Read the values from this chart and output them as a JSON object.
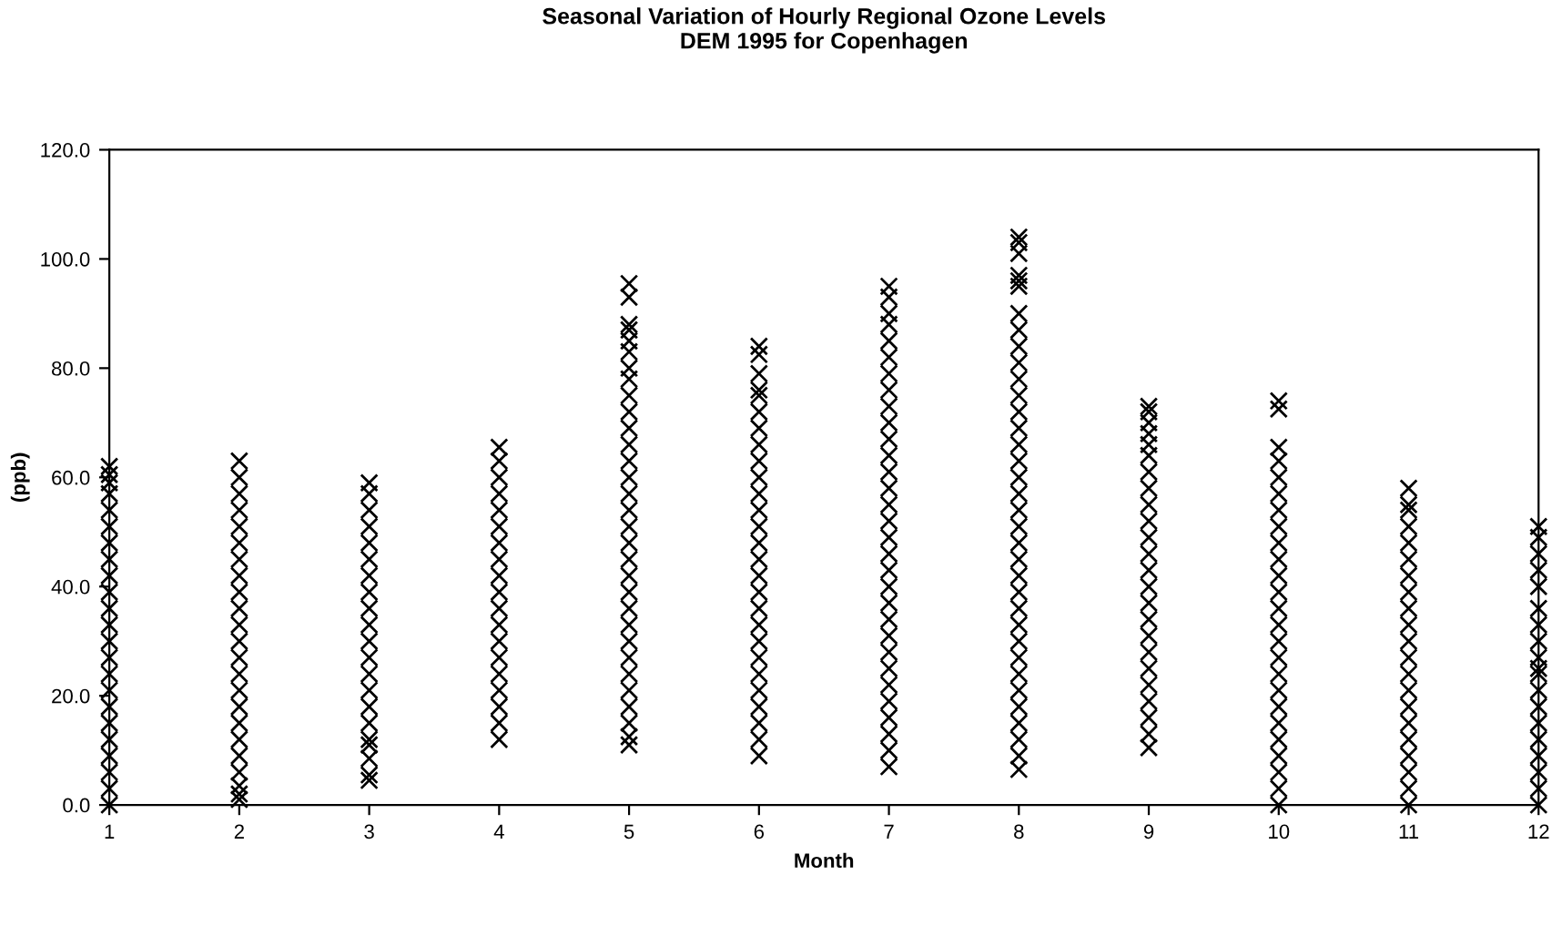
{
  "chart_data": {
    "type": "scatter",
    "title": "Seasonal Variation of Hourly Regional Ozone Levels\nDEM 1995 for Copenhagen",
    "xlabel": "Month",
    "ylabel": "(ppb)",
    "xlim": [
      1,
      12
    ],
    "xticks": [
      1,
      2,
      3,
      4,
      5,
      6,
      7,
      8,
      9,
      10,
      11,
      12
    ],
    "ylim": [
      0,
      120
    ],
    "yticks": [
      {
        "value": 0,
        "label": "0.0"
      },
      {
        "value": 20,
        "label": "20.0"
      },
      {
        "value": 40,
        "label": "40.0"
      },
      {
        "value": 60,
        "label": "60.0"
      },
      {
        "value": 80,
        "label": "80.0"
      },
      {
        "value": 100,
        "label": "100.0"
      },
      {
        "value": 120,
        "label": "120.0"
      }
    ],
    "grid": false,
    "marker": "cross",
    "series": [
      {
        "color": "#000000",
        "x": [
          1,
          1,
          1,
          1,
          1,
          1,
          1,
          1,
          1,
          1,
          1,
          1,
          1,
          1,
          1,
          1,
          1,
          1,
          1,
          1,
          1,
          1,
          1,
          2,
          2,
          2,
          2,
          2,
          2,
          2,
          2,
          2,
          2,
          2,
          2,
          2,
          2,
          2,
          2,
          2,
          2,
          2,
          2,
          2,
          2,
          2,
          3,
          3,
          3,
          3,
          3,
          3,
          3,
          3,
          3,
          3,
          3,
          3,
          3,
          3,
          3,
          3,
          3,
          3,
          3,
          3,
          3,
          4,
          4,
          4,
          4,
          4,
          4,
          4,
          4,
          4,
          4,
          4,
          4,
          4,
          4,
          4,
          4,
          4,
          4,
          4,
          5,
          5,
          5,
          5,
          5,
          5,
          5,
          5,
          5,
          5,
          5,
          5,
          5,
          5,
          5,
          5,
          5,
          5,
          5,
          5,
          5,
          5,
          5,
          5,
          5,
          5,
          5,
          5,
          5,
          5,
          5,
          6,
          6,
          6,
          6,
          6,
          6,
          6,
          6,
          6,
          6,
          6,
          6,
          6,
          6,
          6,
          6,
          6,
          6,
          6,
          6,
          6,
          6,
          6,
          6,
          6,
          6,
          6,
          7,
          7,
          7,
          7,
          7,
          7,
          7,
          7,
          7,
          7,
          7,
          7,
          7,
          7,
          7,
          7,
          7,
          7,
          7,
          7,
          7,
          7,
          7,
          7,
          7,
          7,
          7,
          7,
          7,
          7,
          7,
          8,
          8,
          8,
          8,
          8,
          8,
          8,
          8,
          8,
          8,
          8,
          8,
          8,
          8,
          8,
          8,
          8,
          8,
          8,
          8,
          8,
          8,
          8,
          8,
          8,
          8,
          8,
          8,
          8,
          8,
          8,
          8,
          8,
          8,
          8,
          9,
          9,
          9,
          9,
          9,
          9,
          9,
          9,
          9,
          9,
          9,
          9,
          9,
          9,
          9,
          9,
          9,
          9,
          9,
          9,
          9,
          9,
          9,
          9,
          10,
          10,
          10,
          10,
          10,
          10,
          10,
          10,
          10,
          10,
          10,
          10,
          10,
          10,
          10,
          10,
          10,
          10,
          10,
          10,
          10,
          10,
          10,
          10,
          10,
          11,
          11,
          11,
          11,
          11,
          11,
          11,
          11,
          11,
          11,
          11,
          11,
          11,
          11,
          11,
          11,
          11,
          11,
          11,
          11,
          11,
          12,
          12,
          12,
          12,
          12,
          12,
          12,
          12,
          12,
          12,
          12,
          12,
          12,
          12,
          12,
          12,
          12,
          12,
          12
        ],
        "values": [
          0,
          3,
          6,
          9,
          12,
          15,
          18,
          21,
          24,
          27,
          30,
          33,
          36,
          39,
          42,
          45,
          48,
          51,
          54,
          57,
          59,
          60.5,
          62,
          1,
          2,
          3.5,
          6,
          9,
          12,
          15,
          18,
          21,
          24,
          27,
          30,
          33,
          36,
          39,
          42,
          45,
          48,
          51,
          54,
          57,
          60,
          63,
          4.5,
          5.5,
          8.5,
          11,
          12,
          15,
          18,
          21,
          24,
          27,
          30,
          33,
          36,
          39,
          42,
          45,
          48,
          51,
          54,
          57,
          59,
          12,
          15,
          18,
          21,
          24,
          27,
          30,
          33,
          36,
          39,
          42,
          45,
          48,
          51,
          54,
          57,
          60,
          63,
          65.5,
          11,
          12.5,
          15,
          18,
          21,
          24,
          27,
          30,
          33,
          36,
          39,
          42,
          45,
          48,
          51,
          54,
          57,
          60,
          63,
          66,
          69,
          72,
          75,
          78,
          80,
          83,
          85,
          87,
          88,
          93,
          95.5,
          9,
          12,
          15,
          18,
          21,
          24,
          27,
          30,
          33,
          36,
          39,
          42,
          45,
          48,
          51,
          54,
          57,
          60,
          63,
          66,
          69,
          72,
          75,
          76,
          79,
          82.5,
          84,
          7,
          10,
          13,
          16,
          19,
          22,
          25,
          28,
          31,
          34,
          37,
          40,
          43,
          46,
          49,
          52,
          55,
          58,
          61,
          64,
          67,
          70,
          73,
          76,
          79,
          82,
          85,
          88,
          90,
          93,
          95,
          6.5,
          9,
          12,
          15,
          18,
          21,
          24,
          27,
          30,
          33,
          36,
          39,
          42,
          45,
          48,
          51,
          54,
          57,
          60,
          63,
          66,
          69,
          72,
          75,
          78,
          81,
          84,
          87,
          90,
          95,
          96,
          97,
          101,
          103,
          104,
          10.5,
          13,
          16,
          19,
          22,
          25,
          28,
          31,
          34,
          37,
          40,
          43,
          46,
          49,
          52,
          55,
          58,
          61,
          64,
          66,
          68,
          70,
          72,
          73,
          0,
          3,
          6,
          9,
          12,
          15,
          18,
          21,
          24,
          27,
          30,
          33,
          36,
          39,
          42,
          45,
          48,
          51,
          54,
          57,
          60,
          63,
          65.5,
          72.5,
          74,
          0,
          3,
          6,
          9,
          12,
          15,
          18,
          21,
          24,
          27,
          30,
          33,
          36,
          39,
          42,
          45,
          48,
          51,
          54,
          55,
          58,
          0,
          3,
          6,
          9,
          12,
          15,
          18,
          21,
          24,
          25,
          27,
          30,
          33,
          36,
          40,
          43,
          46,
          49,
          51
        ]
      }
    ]
  }
}
